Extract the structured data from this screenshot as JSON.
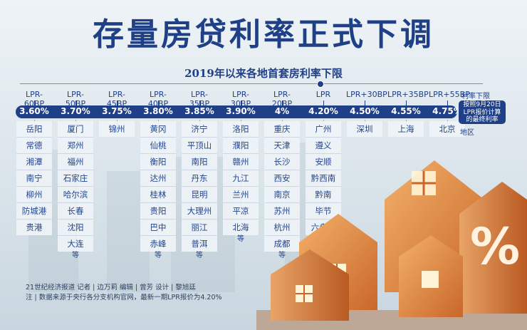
{
  "title": "存量房贷利率正式下调",
  "subtitle": "2019年以来各地首套房利率下限",
  "legend": {
    "rate_label": "利率下限",
    "note": [
      "按照9月20日",
      "LPR报价计算",
      "的最终利率"
    ],
    "region_label": "地区"
  },
  "columns": [
    {
      "label": "LPR-60BP",
      "rate": "3.60%",
      "cities": [
        "岳阳",
        "常德",
        "湘潭",
        "南宁",
        "柳州",
        "防城港",
        "贵港"
      ],
      "etc": ""
    },
    {
      "label": "LPR-50BP",
      "rate": "3.70%",
      "cities": [
        "厦门",
        "郑州",
        "福州",
        "石家庄",
        "哈尔滨",
        "长春",
        "沈阳",
        "大连"
      ],
      "etc": "等"
    },
    {
      "label": "LPR-45BP",
      "rate": "3.75%",
      "cities": [
        "锦州"
      ],
      "etc": ""
    },
    {
      "label": "LPR-40BP",
      "rate": "3.80%",
      "cities": [
        "黄冈",
        "仙桃",
        "衡阳",
        "达州",
        "桂林",
        "贵阳",
        "巴中",
        "赤峰"
      ],
      "etc": "等"
    },
    {
      "label": "LPR-35BP",
      "rate": "3.85%",
      "cities": [
        "济宁",
        "平顶山",
        "南阳",
        "丹东",
        "昆明",
        "大理州",
        "丽江",
        "普洱"
      ],
      "etc": "等"
    },
    {
      "label": "LPR-30BP",
      "rate": "3.90%",
      "cities": [
        "洛阳",
        "濮阳",
        "赣州",
        "九江",
        "兰州",
        "平凉",
        "北海"
      ],
      "etc": "等"
    },
    {
      "label": "LPR-20BP",
      "rate": "4%",
      "cities": [
        "重庆",
        "天津",
        "长沙",
        "西安",
        "南京",
        "苏州",
        "杭州",
        "成都"
      ],
      "etc": "等"
    },
    {
      "label": "LPR",
      "rate": "4.20%",
      "cities": [
        "广州",
        "遵义",
        "安顺",
        "黔西南",
        "黔南",
        "毕节",
        "六盘水"
      ],
      "etc": ""
    },
    {
      "label": "LPR+30BP",
      "rate": "4.50%",
      "cities": [
        "深圳"
      ],
      "etc": ""
    },
    {
      "label": "LPR+35BP",
      "rate": "4.55%",
      "cities": [
        "上海"
      ],
      "etc": ""
    },
    {
      "label": "LPR+55BP",
      "rate": "4.75%",
      "cities": [
        "北京"
      ],
      "etc": ""
    }
  ],
  "credits": {
    "line1": "21世纪经济报道  记者 | 边万莉  编辑 | 曾芳  设计 | 黎旭廷",
    "line2": "注 | 数据来源于央行各分支机构官网，最新一期LPR报价为4.20%"
  },
  "colors": {
    "primary": "#1f3f86",
    "house": "#e0893a",
    "house_light": "#f6c98d"
  },
  "icons": {
    "percent": "percent-symbol",
    "house": "house-illustration"
  }
}
